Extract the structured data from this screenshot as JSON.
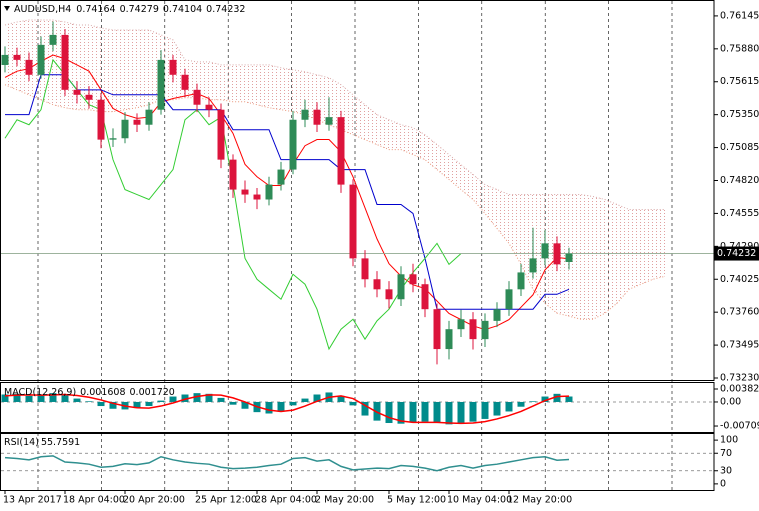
{
  "chart_data": [
    {
      "type": "candlestick",
      "title": "AUDUSD,H4",
      "categories": [
        "13 Apr 2017",
        null,
        null,
        null,
        null,
        "18 Apr 04:00",
        null,
        null,
        null,
        null,
        "20 Apr 20:00",
        null,
        null,
        null,
        null,
        null,
        "25 Apr 12:00",
        null,
        null,
        null,
        null,
        "28 Apr 04:00",
        null,
        null,
        null,
        null,
        "2 May 20:00",
        null,
        null,
        null,
        null,
        null,
        "5 May 12:00",
        null,
        null,
        null,
        null,
        "10 May 04:00",
        null,
        null,
        null,
        null,
        "12 May 20:00",
        null,
        null,
        null,
        null,
        null,
        null,
        null,
        null,
        null,
        null,
        null,
        null,
        null
      ],
      "open": [
        0.7575,
        0.75831,
        0.75791,
        0.75671,
        0.75912,
        0.75992,
        0.7555,
        0.7551,
        0.7547,
        0.75149,
        0.7516,
        0.75309,
        0.75269,
        0.7539,
        0.75791,
        0.75671,
        0.7555,
        0.7543,
        0.7539,
        0.74988,
        0.74747,
        0.74707,
        0.74667,
        0.74787,
        0.74908,
        0.75309,
        0.7539,
        0.75269,
        0.7533,
        0.74787,
        0.74193,
        0.74025,
        0.73944,
        0.73864,
        0.74065,
        0.73985,
        0.73784,
        0.73463,
        0.73623,
        0.73703,
        0.73543,
        0.7369,
        0.73784,
        0.73944,
        0.7408,
        0.74193,
        0.74314,
        0.74164,
        null,
        null,
        null,
        null,
        null,
        null,
        null,
        null
      ],
      "high": [
        0.759,
        0.7589,
        0.7585,
        0.7598,
        0.761,
        0.7604,
        0.7562,
        0.7558,
        0.7552,
        0.7524,
        0.7537,
        0.7536,
        0.7545,
        0.7587,
        0.7583,
        0.7572,
        0.756,
        0.7549,
        0.7544,
        0.7503,
        0.7482,
        0.7476,
        0.7485,
        0.7497,
        0.7538,
        0.7547,
        0.7545,
        0.7549,
        0.7538,
        0.7483,
        0.7426,
        0.7409,
        0.7401,
        0.7413,
        0.7415,
        0.7403,
        0.7383,
        0.7369,
        0.7378,
        0.7376,
        0.7375,
        0.7384,
        0.7401,
        0.7415,
        0.7444,
        0.7442,
        0.7437,
        0.74279,
        null,
        null,
        null,
        null,
        null,
        null,
        null,
        null
      ],
      "low": [
        0.7569,
        0.7574,
        0.7562,
        0.7564,
        0.7586,
        0.755,
        0.7544,
        0.754,
        0.7508,
        0.7509,
        0.7512,
        0.7521,
        0.7522,
        0.7535,
        0.7561,
        0.7549,
        0.7537,
        0.7533,
        0.7492,
        0.7468,
        0.7464,
        0.7459,
        0.7462,
        0.7474,
        0.7487,
        0.7525,
        0.7521,
        0.7522,
        0.7472,
        0.7413,
        0.7396,
        0.7388,
        0.7379,
        0.7381,
        0.7392,
        0.7372,
        0.7334,
        0.7338,
        0.7356,
        0.7346,
        0.7348,
        0.7364,
        0.7373,
        0.7389,
        0.7403,
        0.7414,
        0.7409,
        0.74104,
        null,
        null,
        null,
        null,
        null,
        null,
        null,
        null
      ],
      "close": [
        0.75831,
        0.75791,
        0.75671,
        0.75912,
        0.75992,
        0.7555,
        0.7551,
        0.7547,
        0.75149,
        0.7516,
        0.75309,
        0.75269,
        0.7539,
        0.75791,
        0.75671,
        0.7555,
        0.7543,
        0.7539,
        0.74988,
        0.74747,
        0.74707,
        0.74667,
        0.74787,
        0.74908,
        0.75309,
        0.7539,
        0.75269,
        0.7533,
        0.74787,
        0.74193,
        0.74025,
        0.73944,
        0.73864,
        0.74065,
        0.73985,
        0.73784,
        0.73463,
        0.73623,
        0.73703,
        0.73543,
        0.7369,
        0.73784,
        0.73944,
        0.7408,
        0.74193,
        0.74314,
        0.74145,
        0.74232,
        null,
        null,
        null,
        null,
        null,
        null,
        null,
        null
      ],
      "up_color": "#2e8b57",
      "down_color": "#dc143c",
      "series": [
        {
          "color": "#ff0000",
          "values": [
            0.7565,
            0.757,
            0.7572,
            0.7578,
            0.7583,
            0.758,
            0.7575,
            0.757,
            0.7555,
            0.754,
            0.7535,
            0.7532,
            0.7533,
            0.7545,
            0.7548,
            0.755,
            0.7552,
            0.7548,
            0.7535,
            0.752,
            0.7495,
            0.7485,
            0.7478,
            0.7478,
            0.7495,
            0.751,
            0.7515,
            0.7515,
            0.7505,
            0.7485,
            0.746,
            0.7435,
            0.7415,
            0.7405,
            0.7398,
            0.7395,
            0.7385,
            0.7375,
            0.737,
            0.7365,
            0.7362,
            0.7365,
            0.737,
            0.738,
            0.739,
            0.741,
            0.742,
            0.7419,
            null,
            null,
            null,
            null,
            null,
            null,
            null,
            null
          ]
        },
        {
          "color": "#0000cd",
          "values": [
            0.7535,
            0.7535,
            0.7535,
            0.75671,
            0.75671,
            0.75671,
            0.7555,
            0.7555,
            0.7555,
            0.7551,
            0.7551,
            0.7551,
            0.7551,
            0.7551,
            0.7539,
            0.7539,
            0.7539,
            0.7539,
            0.7539,
            0.75229,
            0.75229,
            0.75229,
            0.75229,
            0.74988,
            0.74988,
            0.74988,
            0.74988,
            0.74988,
            0.74908,
            0.74908,
            0.74908,
            0.74627,
            0.74627,
            0.74627,
            0.74555,
            0.74193,
            0.73784,
            0.73784,
            0.73784,
            0.73784,
            0.73784,
            0.73784,
            0.73784,
            0.73784,
            0.73784,
            0.73904,
            0.73904,
            0.73944,
            null,
            null,
            null,
            null,
            null,
            null,
            null,
            null
          ]
        },
        {
          "color": "#32cd32",
          "values": [
            0.7516,
            0.75309,
            0.75269,
            0.7539,
            0.75791,
            0.75671,
            0.7555,
            0.7543,
            0.7539,
            0.74988,
            0.74747,
            0.74707,
            0.74667,
            0.74787,
            0.74908,
            0.75309,
            0.7539,
            0.75269,
            0.7533,
            0.74787,
            0.74193,
            0.74025,
            0.73944,
            0.73864,
            0.74065,
            0.73985,
            0.73784,
            0.73463,
            0.73623,
            0.73703,
            0.73543,
            0.7369,
            0.73784,
            0.73944,
            0.7408,
            0.74193,
            0.74314,
            0.74145,
            0.74232,
            null,
            null,
            null,
            null,
            null,
            null,
            null,
            null,
            null,
            null,
            null,
            null,
            null,
            null,
            null,
            null,
            null
          ]
        }
      ],
      "cloud": {
        "upper": [
          0.76072,
          0.76096,
          0.76112,
          0.76112,
          0.76112,
          0.76096,
          0.76072,
          0.76072,
          0.76048,
          0.76032,
          0.76032,
          0.76032,
          0.76032,
          0.75992,
          0.75952,
          0.75791,
          0.75775,
          0.75775,
          0.75751,
          0.75751,
          0.75751,
          0.75751,
          0.75751,
          0.75727,
          0.75711,
          0.75695,
          0.75671,
          0.75647,
          0.75591,
          0.7551,
          0.7543,
          0.7535,
          0.75309,
          0.75269,
          0.75245,
          0.75189,
          0.75109,
          0.75028,
          0.74948,
          0.74868,
          0.74787,
          0.74747,
          0.74707,
          0.74707,
          0.74707,
          0.74707,
          0.74707,
          0.74707,
          0.74707,
          0.74691,
          0.74667,
          0.74627,
          0.74587,
          0.74587,
          0.74587,
          0.74587
        ],
        "lower": [
          0.75591,
          0.7555,
          0.7551,
          0.7547,
          0.7543,
          0.75406,
          0.7539,
          0.7539,
          0.75374,
          0.75374,
          0.7539,
          0.75406,
          0.7543,
          0.7547,
          0.7547,
          0.75486,
          0.75486,
          0.7547,
          0.7547,
          0.75454,
          0.75454,
          0.7543,
          0.75406,
          0.7539,
          0.75374,
          0.7535,
          0.75309,
          0.75269,
          0.75229,
          0.75189,
          0.75149,
          0.75109,
          0.75069,
          0.75069,
          0.75028,
          0.74988,
          0.74908,
          0.74828,
          0.74747,
          0.74667,
          0.74555,
          0.74434,
          0.74314,
          0.74145,
          0.73944,
          0.73832,
          0.73752,
          0.73728,
          0.73703,
          0.73703,
          0.73752,
          0.73832,
          0.73944,
          0.73985,
          0.74025,
          0.74049
        ],
        "upper_color": "#d8a8a8",
        "lower_color": "#e9967a"
      },
      "ylim": [
        0.73214,
        0.76265
      ],
      "yticks": [
        0.76145,
        {
          "value": 0.7588,
          "label": "0.75880"
        },
        0.75615,
        {
          "value": 0.7535,
          "label": "0.75350"
        },
        0.75085,
        {
          "value": 0.7482,
          "label": "0.74820"
        },
        0.74555,
        {
          "value": 0.7429,
          "label": "0.74290"
        },
        0.74025,
        {
          "value": 0.7376,
          "label": "0.73760"
        },
        0.73495,
        {
          "value": 0.7323,
          "label": "0.73230"
        }
      ],
      "price_line": true
    },
    {
      "type": "macd",
      "title": "MACD(12,26,9)",
      "series": [
        {
          "color": "#008b8b",
          "values": [
            0.0022,
            0.0024,
            0.0018,
            0.002,
            0.0026,
            0.002,
            0.001,
            0.0002,
            -0.0012,
            -0.002,
            -0.0022,
            -0.0018,
            -0.0012,
            0.0004,
            0.0016,
            0.0022,
            0.0026,
            0.0024,
            0.0012,
            -0.0008,
            -0.002,
            -0.003,
            -0.0034,
            -0.0028,
            -0.001,
            0.001,
            0.0022,
            0.0028,
            0.0018,
            -0.001,
            -0.004,
            -0.0055,
            -0.0062,
            -0.0064,
            -0.006,
            -0.0058,
            -0.0062,
            -0.0066,
            -0.0064,
            -0.0058,
            -0.005,
            -0.004,
            -0.0028,
            -0.0014,
            0.0002,
            0.0016,
            0.0024,
            0.001608
          ]
        },
        {
          "color": "#ff0000",
          "values": [
            0.0018,
            0.002,
            0.0021,
            0.002,
            0.0021,
            0.0022,
            0.0019,
            0.0014,
            0.0006,
            -0.0004,
            -0.0012,
            -0.0017,
            -0.0018,
            -0.0012,
            -0.0003,
            0.0008,
            0.0016,
            0.0021,
            0.002,
            0.0012,
            0,
            -0.0014,
            -0.0024,
            -0.0028,
            -0.0024,
            -0.0012,
            0.0002,
            0.0014,
            0.0018,
            0.001,
            -0.001,
            -0.003,
            -0.0046,
            -0.0056,
            -0.006,
            -0.006,
            -0.006,
            -0.0062,
            -0.0063,
            -0.0062,
            -0.0058,
            -0.005,
            -0.004,
            -0.0028,
            -0.0012,
            0.0004,
            0.0016,
            0.00172
          ],
          "value_labels": [
            null,
            null,
            null,
            null,
            null,
            null,
            null,
            null,
            null,
            null,
            null,
            null,
            null,
            null,
            null,
            null,
            null,
            null,
            null,
            null,
            null,
            null,
            null,
            null,
            null,
            null,
            null,
            null,
            null,
            null,
            null,
            null,
            null,
            null,
            null,
            null,
            null,
            null,
            null,
            null,
            null,
            null,
            null,
            null,
            null,
            null,
            null,
            "0.001720"
          ]
        }
      ],
      "ylim": [
        -0.00885,
        0.00559
      ],
      "yticks": [
        0.003824,
        {
          "value": 0,
          "label": "0.00"
        },
        -0.00709
      ]
    },
    {
      "type": "line",
      "title": "RSI(14)",
      "series": [
        {
          "color": "#2f8f8f",
          "values": [
            60,
            58,
            55,
            62,
            64,
            50,
            48,
            45,
            38,
            40,
            46,
            44,
            48,
            62,
            55,
            50,
            47,
            45,
            38,
            35,
            36,
            38,
            42,
            45,
            58,
            60,
            52,
            55,
            40,
            32,
            34,
            36,
            35,
            42,
            40,
            36,
            30,
            38,
            42,
            36,
            42,
            45,
            50,
            55,
            60,
            62,
            54,
            55.7591
          ]
        }
      ],
      "ylim": [
        -14,
        114
      ],
      "yticks": [
        100,
        70,
        30,
        0
      ],
      "levels": [
        70,
        30
      ]
    }
  ]
}
